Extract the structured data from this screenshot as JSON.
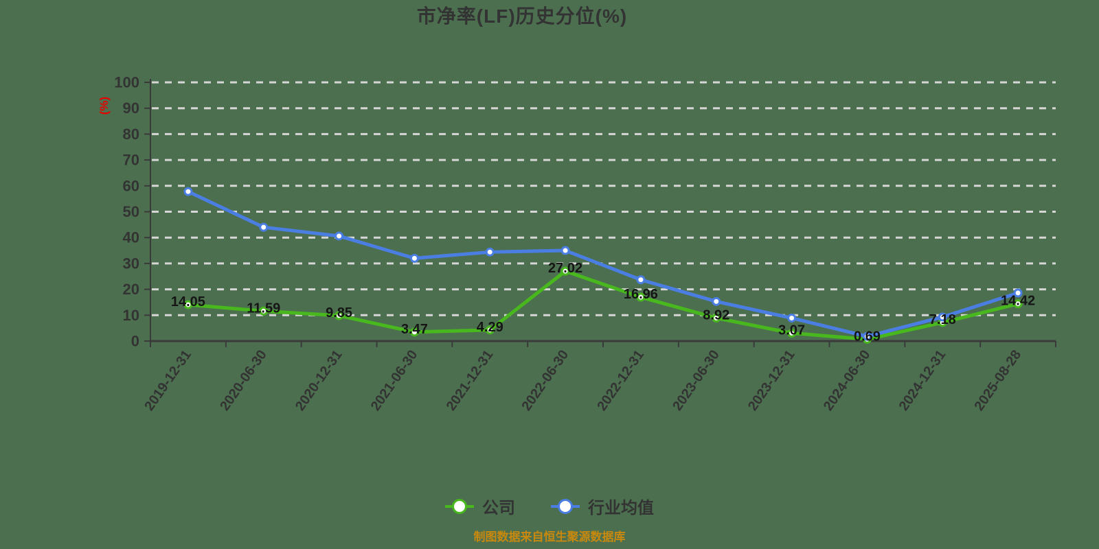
{
  "footer": {
    "source_note": "制图数据来自恒生聚源数据库"
  },
  "chart_data": {
    "type": "line",
    "title": "市净率(LF)历史分位(%)",
    "xlabel": "",
    "ylabel": "(%)",
    "ylim": [
      0,
      100
    ],
    "ytick_interval": 10,
    "grid": "horizontal-dashed",
    "legend_position": "bottom",
    "categories": [
      "2019-12-31",
      "2020-06-30",
      "2020-12-31",
      "2021-06-30",
      "2021-12-31",
      "2022-06-30",
      "2022-12-31",
      "2023-06-30",
      "2023-12-31",
      "2024-06-30",
      "2024-12-31",
      "2025-08-28"
    ],
    "series": [
      {
        "name": "公司",
        "color": "#49b81e",
        "show_point_labels": true,
        "values": [
          14.05,
          11.59,
          9.85,
          3.47,
          4.29,
          27.02,
          16.96,
          8.92,
          3.07,
          0.69,
          7.18,
          14.42
        ]
      },
      {
        "name": "行业均值",
        "color": "#4b7ee2",
        "show_point_labels": false,
        "values": [
          57.8,
          44,
          40.6,
          32,
          34.4,
          35,
          23.7,
          15.3,
          8.9,
          1.8,
          9.3,
          18.6
        ]
      }
    ],
    "colors": {
      "background": "#4c704f",
      "gridline": "#d6d6d6",
      "axis": "#3a3a3a",
      "ylabel_color": "#e60000",
      "footer_color": "#c8890e"
    }
  }
}
